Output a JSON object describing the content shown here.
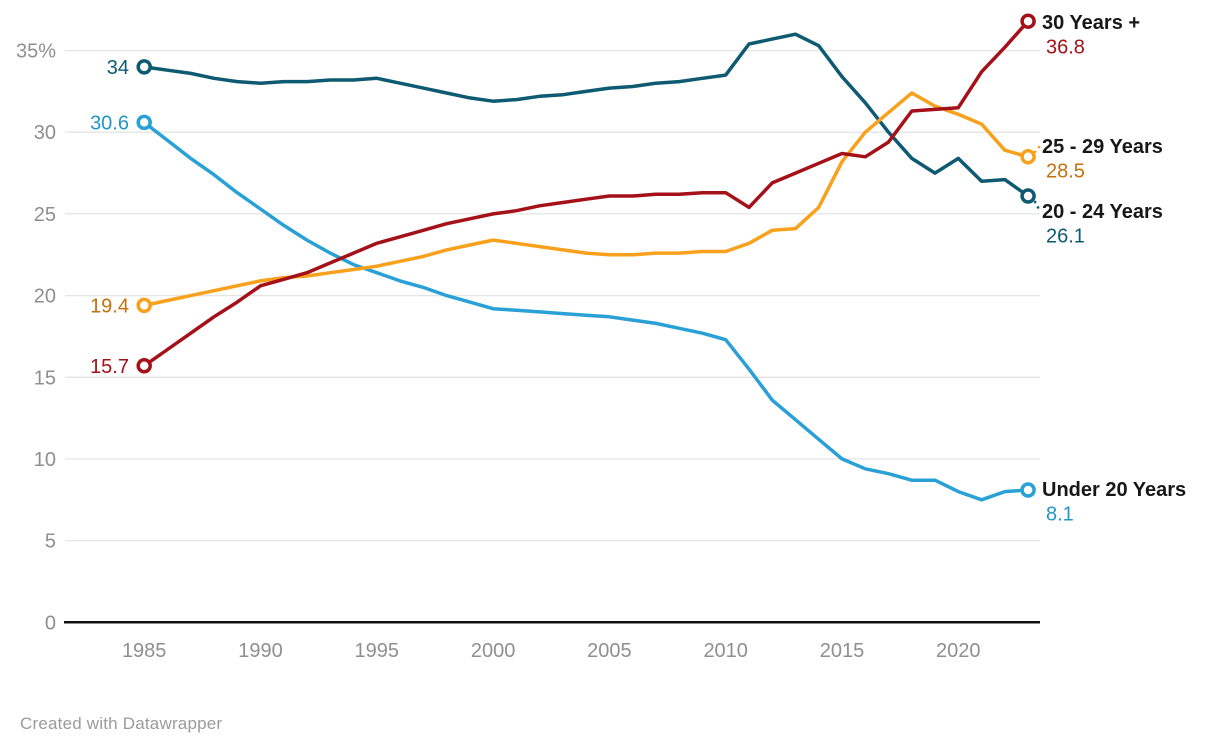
{
  "chart_data": {
    "type": "line",
    "title": "",
    "xlabel": "",
    "ylabel": "",
    "unit": "%",
    "grid": true,
    "legend_position": "direct-labels-right-edge",
    "ylim": [
      0,
      37.8
    ],
    "x": [
      1985,
      1986,
      1987,
      1988,
      1989,
      1990,
      1991,
      1992,
      1993,
      1994,
      1995,
      1996,
      1997,
      1998,
      1999,
      2000,
      2001,
      2002,
      2003,
      2004,
      2005,
      2006,
      2007,
      2008,
      2009,
      2010,
      2011,
      2012,
      2013,
      2014,
      2015,
      2016,
      2017,
      2018,
      2019,
      2020,
      2021,
      2022,
      2023
    ],
    "x_tick_labels": [
      "1985",
      "1990",
      "1995",
      "2000",
      "2005",
      "2010",
      "2015",
      "2020"
    ],
    "x_tick_years": [
      1985,
      1990,
      1995,
      2000,
      2005,
      2010,
      2015,
      2020
    ],
    "y_tick_values": [
      0,
      5,
      10,
      15,
      20,
      25,
      30,
      35
    ],
    "y_tick_labels": [
      "0",
      "5",
      "10",
      "15",
      "20",
      "25",
      "30",
      "35%"
    ],
    "series": [
      {
        "name": "20 - 24 Years",
        "slug": "20-24-years",
        "color": "#0e5a72",
        "label_color": "#0e5a72",
        "start_label": "34",
        "end_label": "26.1",
        "leader_dots": true,
        "values": [
          34,
          33.8,
          33.6,
          33.3,
          33.1,
          33,
          33.1,
          33.1,
          33.2,
          33.2,
          33.3,
          33,
          32.7,
          32.4,
          32.1,
          31.9,
          32,
          32.2,
          32.3,
          32.5,
          32.7,
          32.8,
          33,
          33.1,
          33.3,
          33.5,
          35.4,
          35.7,
          36,
          35.3,
          33.4,
          31.8,
          30,
          28.4,
          27.5,
          28.4,
          27,
          27.1,
          26.1
        ]
      },
      {
        "name": "Under 20 Years",
        "slug": "under-20-years",
        "color": "#29a0d6",
        "label_color": "#2196c9",
        "start_label": "30.6",
        "end_label": "8.1",
        "leader_dots": false,
        "values": [
          30.6,
          29.5,
          28.4,
          27.4,
          26.3,
          25.3,
          24.3,
          23.4,
          22.6,
          21.9,
          21.4,
          20.9,
          20.5,
          20,
          19.6,
          19.2,
          19.1,
          19,
          18.9,
          18.8,
          18.7,
          18.5,
          18.3,
          18,
          17.7,
          17.3,
          15.5,
          13.6,
          12.4,
          11.2,
          10,
          9.4,
          9.1,
          8.7,
          8.7,
          8,
          7.5,
          8,
          8.1
        ]
      },
      {
        "name": "25 - 29 Years",
        "slug": "25-29-years",
        "color": "#f9a01c",
        "label_color": "#c4710c",
        "start_label": "19.4",
        "end_label": "28.5",
        "leader_dots": true,
        "values": [
          19.4,
          19.7,
          20,
          20.3,
          20.6,
          20.9,
          21.1,
          21.2,
          21.4,
          21.6,
          21.8,
          22.1,
          22.4,
          22.8,
          23.1,
          23.4,
          23.2,
          23,
          22.8,
          22.6,
          22.5,
          22.5,
          22.6,
          22.6,
          22.7,
          22.7,
          23.2,
          24,
          24.1,
          25.4,
          28.2,
          30,
          31.2,
          32.4,
          31.6,
          31.1,
          30.5,
          28.9,
          28.5
        ]
      },
      {
        "name": "30 Years +",
        "slug": "30-years-plus",
        "color": "#a41118",
        "label_color": "#a41118",
        "start_label": "15.7",
        "end_label": "36.8",
        "leader_dots": false,
        "values": [
          15.7,
          16.7,
          17.7,
          18.7,
          19.6,
          20.6,
          21,
          21.4,
          22,
          22.6,
          23.2,
          23.6,
          24,
          24.4,
          24.7,
          25,
          25.2,
          25.5,
          25.7,
          25.9,
          26.1,
          26.1,
          26.2,
          26.2,
          26.3,
          26.3,
          25.4,
          26.9,
          27.5,
          28.1,
          28.7,
          28.5,
          29.4,
          31.3,
          31.4,
          31.5,
          33.7,
          35.2,
          36.8
        ]
      }
    ]
  },
  "footer": {
    "credit": "Created with Datawrapper"
  }
}
